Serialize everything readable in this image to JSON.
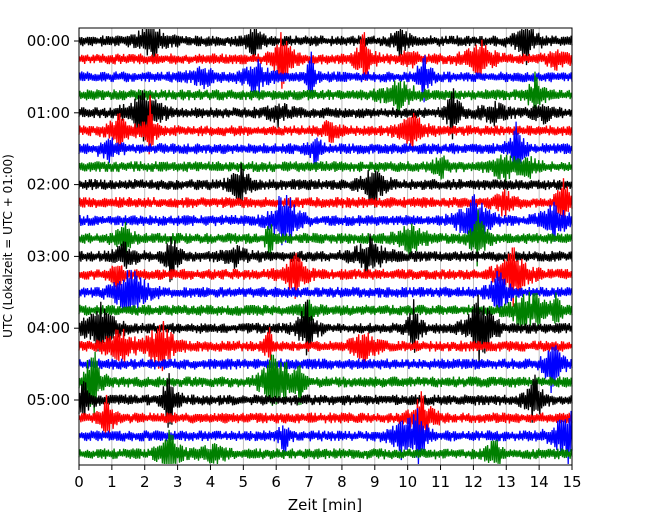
{
  "chart_data": {
    "type": "line",
    "title": "",
    "xlabel": "Zeit  [min]",
    "ylabel": "UTC (Lokalzeit = UTC + 01:00)",
    "xlim": [
      0,
      15
    ],
    "x_ticks": [
      "0",
      "1",
      "2",
      "3",
      "4",
      "5",
      "6",
      "7",
      "8",
      "9",
      "10",
      "11",
      "12",
      "13",
      "14",
      "15"
    ],
    "y_ticks": [
      "00:00",
      "01:00",
      "02:00",
      "03:00",
      "04:00",
      "05:00"
    ],
    "trace_minutes": 15,
    "trace_count": 24,
    "trace_colors": [
      "#000000",
      "#ff0000",
      "#0000ff",
      "#008000"
    ],
    "grid": true,
    "legend": "none"
  }
}
